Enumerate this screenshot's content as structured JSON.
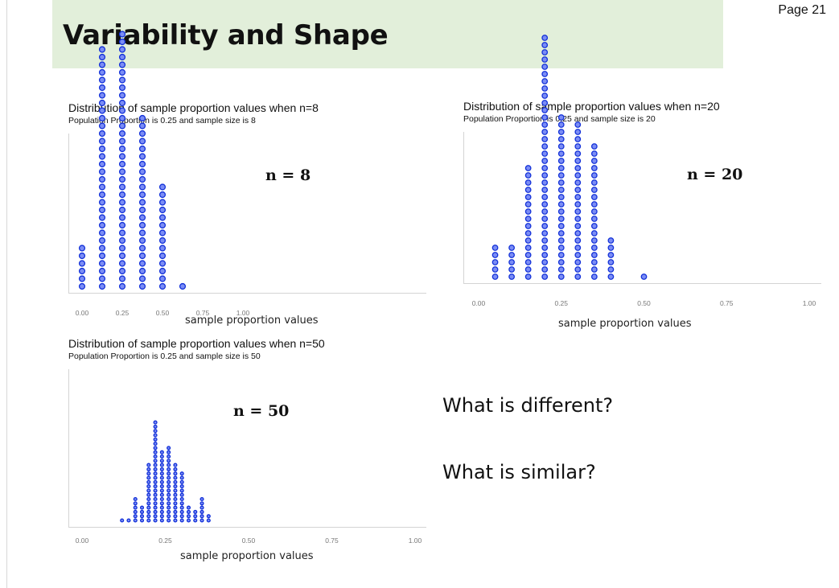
{
  "page": {
    "number_label": "Page 21"
  },
  "slide": {
    "title": "Variability and Shape"
  },
  "questions": [
    "What is different?",
    "What is similar?"
  ],
  "colors": {
    "dot_fill": "#7b8df5",
    "dot_stroke": "#1230d8",
    "title_band": "#e2efda"
  },
  "chart_data": [
    {
      "type": "dotplot",
      "title": "Distribution of sample proportion values when n=8",
      "subtitle": "Population Proportion is 0.25 and sample size is 8",
      "annotation": "n = 8",
      "xlabel": "sample proportion values",
      "xlim": [
        0,
        1
      ],
      "ticks": [
        "0.00",
        "0.25",
        "0.50",
        "0.75",
        "1.00"
      ],
      "x": [
        0,
        0.125,
        0.25,
        0.375,
        0.5,
        0.625
      ],
      "counts": [
        6,
        32,
        34,
        23,
        14,
        1
      ]
    },
    {
      "type": "dotplot",
      "title": "Distribution of sample proportion values when n=20",
      "subtitle": "Population Proportion is 0.25 and sample size is 20",
      "annotation": "n = 20",
      "xlabel": "sample proportion values",
      "xlim": [
        0,
        1
      ],
      "ticks": [
        "0.00",
        "0.25",
        "0.50",
        "0.75",
        "1.00"
      ],
      "x": [
        0.05,
        0.1,
        0.15,
        0.2,
        0.25,
        0.3,
        0.35,
        0.4,
        0.45,
        0.5
      ],
      "counts": [
        5,
        5,
        16,
        34,
        23,
        22,
        19,
        6,
        0,
        1
      ]
    },
    {
      "type": "dotplot",
      "title": "Distribution of sample proportion values when n=50",
      "subtitle": "Population Proportion is 0.25 and sample size is 50",
      "annotation": "n = 50",
      "xlabel": "sample proportion values",
      "xlim": [
        0,
        1
      ],
      "ticks": [
        "0.00",
        "0.25",
        "0.50",
        "0.75",
        "1.00"
      ],
      "x": [
        0.12,
        0.14,
        0.16,
        0.18,
        0.2,
        0.22,
        0.24,
        0.26,
        0.28,
        0.3,
        0.32,
        0.34,
        0.36,
        0.38
      ],
      "counts": [
        1,
        1,
        6,
        4,
        14,
        24,
        17,
        18,
        14,
        12,
        4,
        3,
        6,
        2
      ]
    }
  ]
}
